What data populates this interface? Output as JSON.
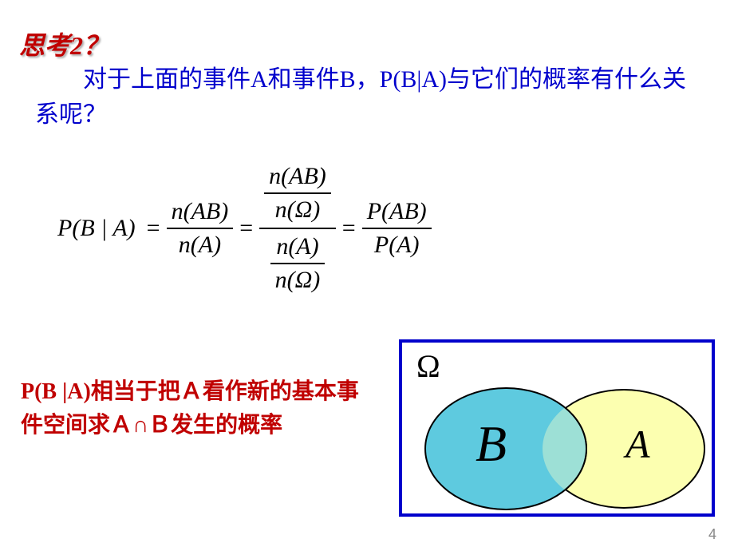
{
  "title": "思考2？",
  "paragraph": "对于上面的事件A和事件B，P(B|A)与它们的概率有什么关系呢？",
  "formula": {
    "lhs": "P(B | A)",
    "eq": "=",
    "f1_num": "n(AB)",
    "f1_den": "n(A)",
    "f2_top_num": "n(AB)",
    "f2_top_den": "n(Ω)",
    "f2_bot_num": "n(A)",
    "f2_bot_den": "n(Ω)",
    "f3_num": "P(AB)",
    "f3_den": "P(A)"
  },
  "conclusion": "P(B |A)相当于把Ａ看作新的基本事件空间求Ａ∩Ｂ发生的概率",
  "venn": {
    "omega": "Ω",
    "labelA": "A",
    "labelB": "B",
    "colorA": "#fcffb0",
    "colorB": "#5ecadf",
    "colorInt": "#9de0d6",
    "border": "#0000cc"
  },
  "pagenum": "4",
  "colors": {
    "title": "#c00000",
    "text_blue": "#0000cc",
    "conclusion": "#c00000",
    "black": "#000000",
    "bg": "#ffffff"
  }
}
